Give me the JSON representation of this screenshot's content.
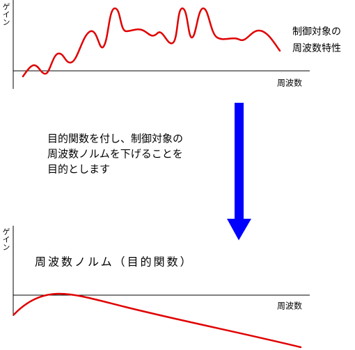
{
  "top_chart": {
    "y_label": "ゲイン",
    "x_label": "周波数",
    "label_lines": [
      "制御対象の",
      "周波数特性"
    ]
  },
  "description_lines": [
    "目的関数を付し、制御対象の",
    "周波数ノルムを下げることを",
    "目的とします"
  ],
  "bottom_chart": {
    "y_label": "ゲイン",
    "x_label": "周波数",
    "title": "周波数ノルム（目的関数）"
  }
}
